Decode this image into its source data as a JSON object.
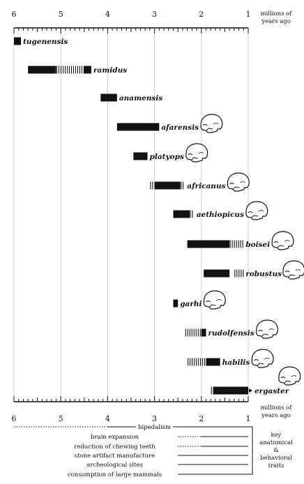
{
  "diagram": {
    "axis_unit_line1": "millions of",
    "axis_unit_line2": "years ago",
    "ticks": [
      "6",
      "5",
      "4",
      "3",
      "2",
      "1"
    ],
    "species": [
      {
        "name": "tugenensis",
        "solid": [
          [
            6.0,
            5.85
          ]
        ],
        "hatch": [],
        "skull": false
      },
      {
        "name": "ramidus",
        "solid": [
          [
            5.7,
            5.1
          ],
          [
            4.5,
            4.35
          ]
        ],
        "hatch": [
          [
            5.1,
            4.5
          ]
        ],
        "skull": false
      },
      {
        "name": "anamensis",
        "solid": [
          [
            4.15,
            3.8
          ]
        ],
        "hatch": [],
        "skull": false
      },
      {
        "name": "afarensis",
        "solid": [
          [
            3.8,
            2.9
          ]
        ],
        "hatch": [],
        "skull": true
      },
      {
        "name": "platyops",
        "solid": [
          [
            3.45,
            3.15
          ]
        ],
        "hatch": [],
        "skull": true
      },
      {
        "name": "africanus",
        "solid": [
          [
            3.0,
            2.45
          ]
        ],
        "hatch": [
          [
            3.1,
            3.0
          ],
          [
            2.45,
            2.35
          ]
        ],
        "skull": true
      },
      {
        "name": "aethiopicus",
        "solid": [
          [
            2.6,
            2.25
          ]
        ],
        "hatch": [
          [
            2.25,
            2.15
          ]
        ],
        "skull": true
      },
      {
        "name": "boisei",
        "solid": [
          [
            2.3,
            1.4
          ]
        ],
        "hatch": [
          [
            1.4,
            1.1
          ]
        ],
        "skull": true
      },
      {
        "name": "robustus",
        "solid": [
          [
            1.95,
            1.4
          ]
        ],
        "hatch": [
          [
            1.3,
            1.1
          ]
        ],
        "skull": true
      },
      {
        "name": "garhi",
        "solid": [
          [
            2.6,
            2.5
          ]
        ],
        "hatch": [],
        "skull": true
      },
      {
        "name": "rudolfensis",
        "solid": [
          [
            2.0,
            1.9
          ]
        ],
        "hatch": [
          [
            2.35,
            2.0
          ]
        ],
        "skull": true
      },
      {
        "name": "habilis",
        "solid": [
          [
            1.9,
            1.6
          ]
        ],
        "hatch": [
          [
            2.3,
            1.9
          ]
        ],
        "skull": true
      },
      {
        "name": "ergaster",
        "solid": [
          [
            1.75,
            1.0
          ]
        ],
        "hatch": [
          [
            1.8,
            1.75
          ]
        ],
        "skull": true
      }
    ],
    "traits": [
      {
        "label": "bipedalism",
        "dotted": [
          6.0,
          4.0
        ],
        "solid": [
          4.0,
          1.0
        ]
      },
      {
        "label": "brain expansion",
        "dotted": [
          2.5,
          2.0
        ],
        "solid": [
          2.0,
          1.0
        ]
      },
      {
        "label": "reduction of chewing teeth",
        "dotted": [
          2.5,
          2.0
        ],
        "solid": [
          2.0,
          1.0
        ]
      },
      {
        "label": "stone artifact manufacture",
        "dotted": null,
        "solid": [
          2.5,
          1.0
        ]
      },
      {
        "label": "archeological sites",
        "dotted": null,
        "solid": [
          2.5,
          1.0
        ]
      },
      {
        "label": "consumption of large mammals",
        "dotted": null,
        "solid": [
          2.5,
          1.0
        ]
      }
    ],
    "key_lines": [
      "key",
      "anatomical",
      "&",
      "behavioral",
      "traits"
    ]
  }
}
